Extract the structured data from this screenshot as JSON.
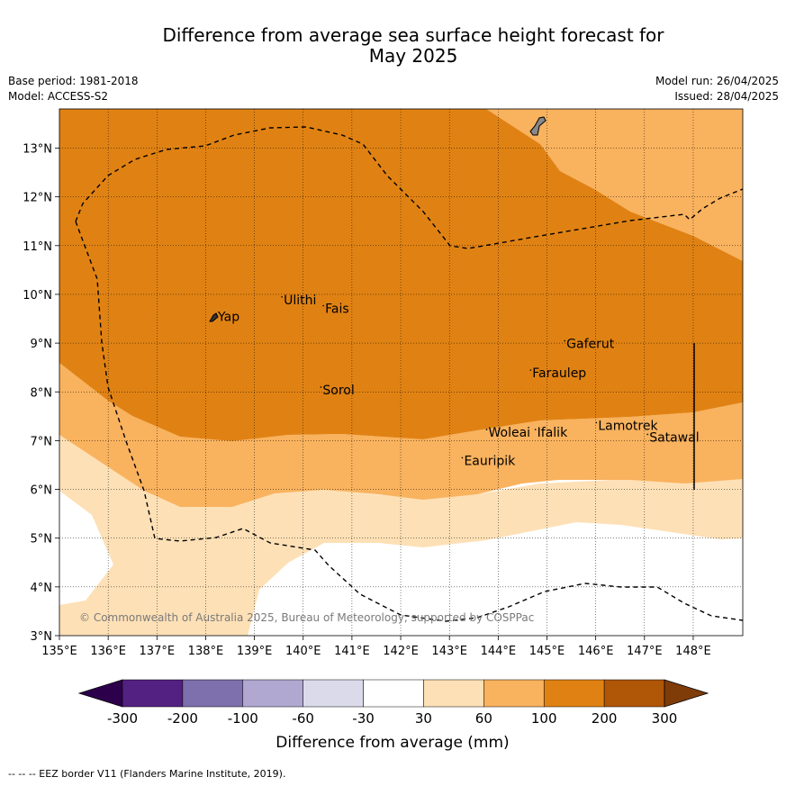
{
  "title_line1": "Difference from average sea surface height forecast for",
  "title_line2": "May 2025",
  "base_period": "Base period: 1981-2018",
  "model": "Model: ACCESS-S2",
  "model_run": "Model run: 26/04/2025",
  "issued": "Issued: 28/04/2025",
  "copyright": "© Commonwealth of Australia 2025, Bureau of Meteorology, supported by COSPPac",
  "footer": "--  --  -- EEZ border V11 (Flanders Marine Institute, 2019).",
  "map": {
    "lon_range": [
      135,
      149
    ],
    "lat_range": [
      3,
      13.8
    ],
    "x_ticks": [
      "135°E",
      "136°E",
      "137°E",
      "138°E",
      "139°E",
      "140°E",
      "141°E",
      "142°E",
      "143°E",
      "144°E",
      "145°E",
      "146°E",
      "147°E",
      "148°E"
    ],
    "y_ticks": [
      "3°N",
      "4°N",
      "5°N",
      "6°N",
      "7°N",
      "8°N",
      "9°N",
      "10°N",
      "11°N",
      "12°N",
      "13°N"
    ],
    "places": [
      {
        "name": "Yap",
        "lon": 138.25,
        "lat": 9.45
      },
      {
        "name": "Ulithi",
        "lon": 139.6,
        "lat": 9.8
      },
      {
        "name": "Fais",
        "lon": 140.45,
        "lat": 9.62
      },
      {
        "name": "Gaferut",
        "lon": 145.4,
        "lat": 8.9
      },
      {
        "name": "Faraulep",
        "lon": 144.7,
        "lat": 8.3
      },
      {
        "name": "Sorol",
        "lon": 140.4,
        "lat": 7.95
      },
      {
        "name": "Lamotrek",
        "lon": 146.05,
        "lat": 7.22
      },
      {
        "name": "Woleai",
        "lon": 143.8,
        "lat": 7.08
      },
      {
        "name": "Ifalik",
        "lon": 144.8,
        "lat": 7.08
      },
      {
        "name": "Satawal",
        "lon": 147.1,
        "lat": 6.98
      },
      {
        "name": "Eauripik",
        "lon": 143.3,
        "lat": 6.5
      }
    ]
  },
  "colorbar": {
    "title": "Difference from average (mm)",
    "ticks": [
      "-300",
      "-200",
      "-100",
      "-60",
      "-30",
      "30",
      "60",
      "100",
      "200",
      "300"
    ],
    "colors": [
      "#522181",
      "#7d70ac",
      "#b0a8d1",
      "#dadaeb",
      "#ffffff",
      "#fee0b6",
      "#f9b25e",
      "#e08213",
      "#b05607"
    ],
    "under_color": "#2d004b",
    "over_color": "#7f3b08"
  }
}
